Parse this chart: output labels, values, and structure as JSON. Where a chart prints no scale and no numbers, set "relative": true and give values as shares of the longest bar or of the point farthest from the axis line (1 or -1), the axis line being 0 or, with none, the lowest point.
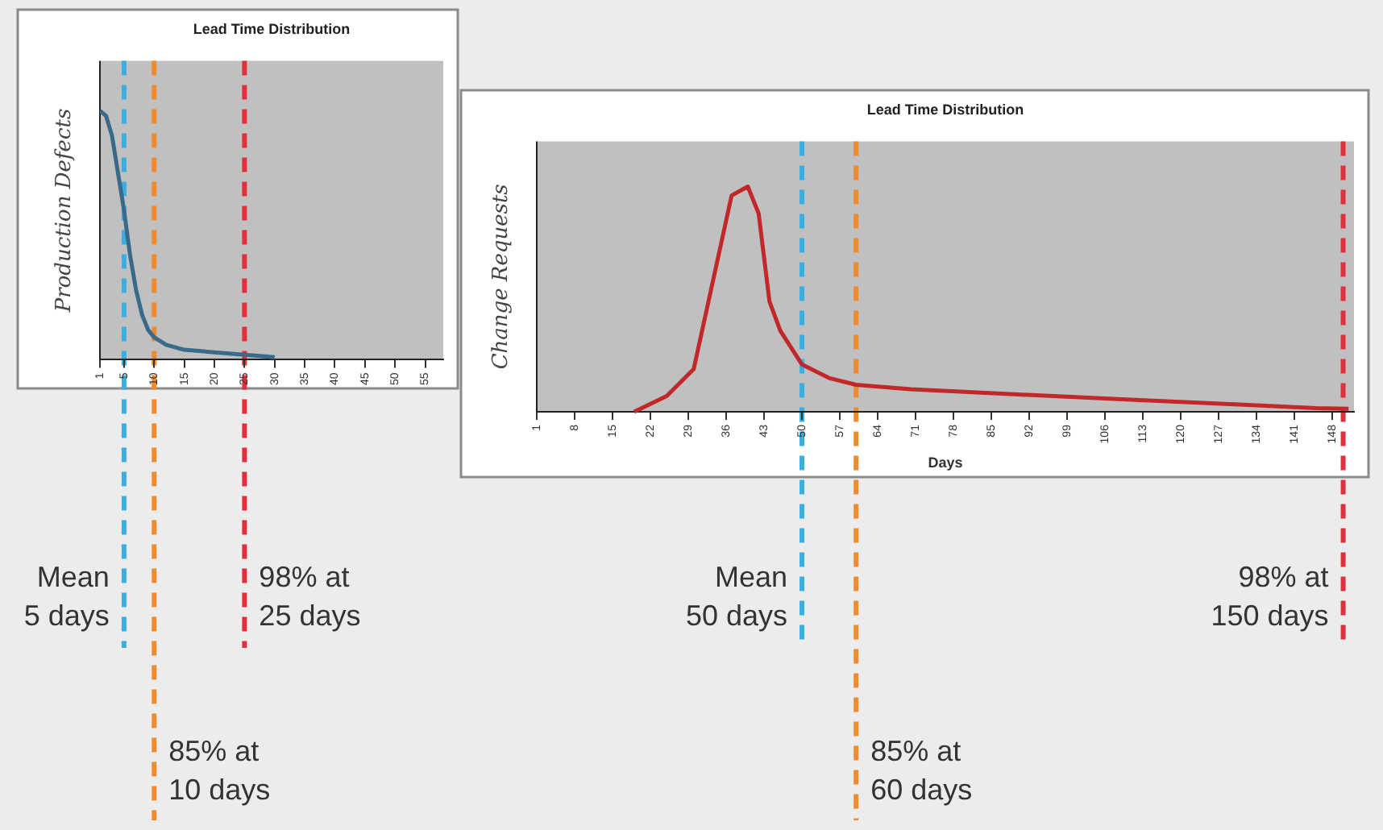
{
  "chart_data": [
    {
      "type": "line",
      "title": "Lead Time Distribution",
      "ylabel": "Production Defects",
      "relative": true,
      "xlim": [
        1,
        58
      ],
      "xticks": [
        1,
        5,
        10,
        15,
        20,
        25,
        30,
        35,
        40,
        45,
        50,
        55
      ],
      "x": [
        1,
        2,
        3,
        4,
        5,
        6,
        7,
        8,
        9,
        10,
        12,
        15,
        20,
        25,
        30
      ],
      "series": [
        {
          "color": "#3a6a8a",
          "values": [
            1,
            0.98,
            0.9,
            0.75,
            0.6,
            0.42,
            0.28,
            0.18,
            0.12,
            0.09,
            0.06,
            0.04,
            0.03,
            0.02,
            0.01
          ]
        }
      ],
      "ref_lines": [
        {
          "axis": "x",
          "value": 5,
          "label": "Mean\n5 days",
          "color": "#3aaee0",
          "line_style": "dashed"
        },
        {
          "axis": "x",
          "value": 10,
          "label": "85% at\n10 days",
          "color": "#f08a30",
          "line_style": "dashed"
        },
        {
          "axis": "x",
          "value": 25,
          "label": "98% at\n25 days",
          "color": "#e0303c",
          "line_style": "dashed"
        }
      ],
      "grid": false,
      "legend": false,
      "marker": "none",
      "line_style": "solid"
    },
    {
      "type": "line",
      "title": "Lead Time Distribution",
      "xlabel": "Days",
      "ylabel": "Change Requests",
      "relative": true,
      "xlim": [
        1,
        152
      ],
      "xticks": [
        1,
        8,
        15,
        22,
        29,
        36,
        43,
        50,
        57,
        64,
        71,
        78,
        85,
        92,
        99,
        106,
        113,
        120,
        127,
        134,
        141,
        148
      ],
      "x": [
        19,
        25,
        30,
        34,
        37,
        40,
        42,
        44,
        46,
        50,
        55,
        60,
        70,
        90,
        110,
        130,
        145,
        151
      ],
      "series": [
        {
          "color": "#c0282a",
          "values": [
            0,
            0.07,
            0.19,
            0.63,
            0.96,
            1,
            0.88,
            0.49,
            0.36,
            0.21,
            0.15,
            0.12,
            0.1,
            0.077,
            0.055,
            0.033,
            0.016,
            0.014
          ]
        }
      ],
      "ref_lines": [
        {
          "axis": "x",
          "value": 50,
          "label": "Mean\n50 days",
          "color": "#3aaee0",
          "line_style": "dashed"
        },
        {
          "axis": "x",
          "value": 60,
          "label": "85% at\n60 days",
          "color": "#f08a30",
          "line_style": "dashed"
        },
        {
          "axis": "x",
          "value": 150,
          "label": "98% at\n150 days",
          "color": "#e0303c",
          "line_style": "dashed"
        }
      ],
      "grid": false,
      "legend": false,
      "marker": "none",
      "line_style": "solid"
    }
  ]
}
